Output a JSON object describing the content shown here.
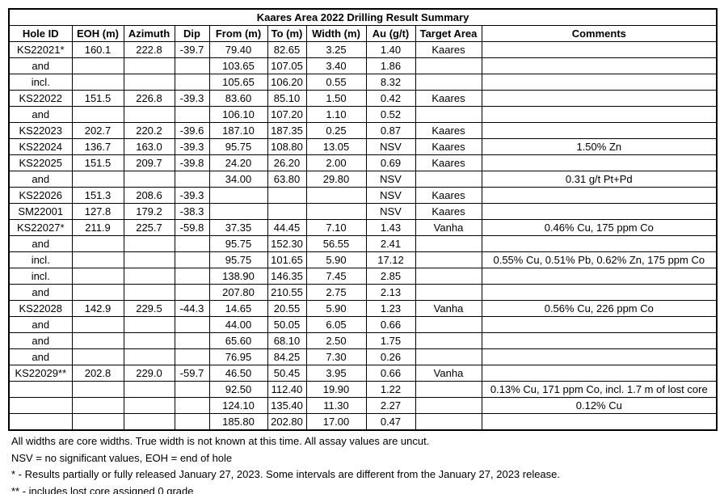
{
  "table": {
    "title": "Kaares Area 2022 Drilling Result Summary",
    "columns": [
      "Hole ID",
      "EOH (m)",
      "Azimuth",
      "Dip",
      "From (m)",
      "To (m)",
      "Width (m)",
      "Au (g/t)",
      "Target Area",
      "Comments"
    ],
    "rows": [
      [
        "KS22021*",
        "160.1",
        "222.8",
        "-39.7",
        "79.40",
        "82.65",
        "3.25",
        "1.40",
        "Kaares",
        ""
      ],
      [
        "and",
        "",
        "",
        "",
        "103.65",
        "107.05",
        "3.40",
        "1.86",
        "",
        ""
      ],
      [
        "incl.",
        "",
        "",
        "",
        "105.65",
        "106.20",
        "0.55",
        "8.32",
        "",
        ""
      ],
      [
        "KS22022",
        "151.5",
        "226.8",
        "-39.3",
        "83.60",
        "85.10",
        "1.50",
        "0.42",
        "Kaares",
        ""
      ],
      [
        "and",
        "",
        "",
        "",
        "106.10",
        "107.20",
        "1.10",
        "0.52",
        "",
        ""
      ],
      [
        "KS22023",
        "202.7",
        "220.2",
        "-39.6",
        "187.10",
        "187.35",
        "0.25",
        "0.87",
        "Kaares",
        ""
      ],
      [
        "KS22024",
        "136.7",
        "163.0",
        "-39.3",
        "95.75",
        "108.80",
        "13.05",
        "NSV",
        "Kaares",
        "1.50% Zn"
      ],
      [
        "KS22025",
        "151.5",
        "209.7",
        "-39.8",
        "24.20",
        "26.20",
        "2.00",
        "0.69",
        "Kaares",
        ""
      ],
      [
        "and",
        "",
        "",
        "",
        "34.00",
        "63.80",
        "29.80",
        "NSV",
        "",
        "0.31 g/t Pt+Pd"
      ],
      [
        "KS22026",
        "151.3",
        "208.6",
        "-39.3",
        "",
        "",
        "",
        "NSV",
        "Kaares",
        ""
      ],
      [
        "SM22001",
        "127.8",
        "179.2",
        "-38.3",
        "",
        "",
        "",
        "NSV",
        "Kaares",
        ""
      ],
      [
        "KS22027*",
        "211.9",
        "225.7",
        "-59.8",
        "37.35",
        "44.45",
        "7.10",
        "1.43",
        "Vanha",
        "0.46% Cu, 175 ppm Co"
      ],
      [
        "and",
        "",
        "",
        "",
        "95.75",
        "152.30",
        "56.55",
        "2.41",
        "",
        ""
      ],
      [
        "incl.",
        "",
        "",
        "",
        "95.75",
        "101.65",
        "5.90",
        "17.12",
        "",
        "0.55% Cu, 0.51% Pb, 0.62% Zn, 175 ppm Co"
      ],
      [
        "incl.",
        "",
        "",
        "",
        "138.90",
        "146.35",
        "7.45",
        "2.85",
        "",
        ""
      ],
      [
        "and",
        "",
        "",
        "",
        "207.80",
        "210.55",
        "2.75",
        "2.13",
        "",
        ""
      ],
      [
        "KS22028",
        "142.9",
        "229.5",
        "-44.3",
        "14.65",
        "20.55",
        "5.90",
        "1.23",
        "Vanha",
        "0.56% Cu, 226 ppm Co"
      ],
      [
        "and",
        "",
        "",
        "",
        "44.00",
        "50.05",
        "6.05",
        "0.66",
        "",
        ""
      ],
      [
        "and",
        "",
        "",
        "",
        "65.60",
        "68.10",
        "2.50",
        "1.75",
        "",
        ""
      ],
      [
        "and",
        "",
        "",
        "",
        "76.95",
        "84.25",
        "7.30",
        "0.26",
        "",
        ""
      ],
      [
        "KS22029**",
        "202.8",
        "229.0",
        "-59.7",
        "46.50",
        "50.45",
        "3.95",
        "0.66",
        "Vanha",
        ""
      ],
      [
        "",
        "",
        "",
        "",
        "92.50",
        "112.40",
        "19.90",
        "1.22",
        "",
        "0.13% Cu, 171 ppm Co, incl. 1.7 m of lost core"
      ],
      [
        "",
        "",
        "",
        "",
        "124.10",
        "135.40",
        "11.30",
        "2.27",
        "",
        "0.12% Cu"
      ],
      [
        "",
        "",
        "",
        "",
        "185.80",
        "202.80",
        "17.00",
        "0.47",
        "",
        ""
      ]
    ]
  },
  "footnotes": [
    "All widths are core widths.  True width is not known at this time. All assay values are uncut.",
    "NSV = no significant values, EOH = end of hole",
    "* - Results partially or fully released January 27, 2023. Some intervals are different from the January 27, 2023 release.",
    "** - includes lost core assigned 0 grade"
  ],
  "colors": {
    "border": "#000000",
    "text": "#000000",
    "background": "#ffffff"
  }
}
